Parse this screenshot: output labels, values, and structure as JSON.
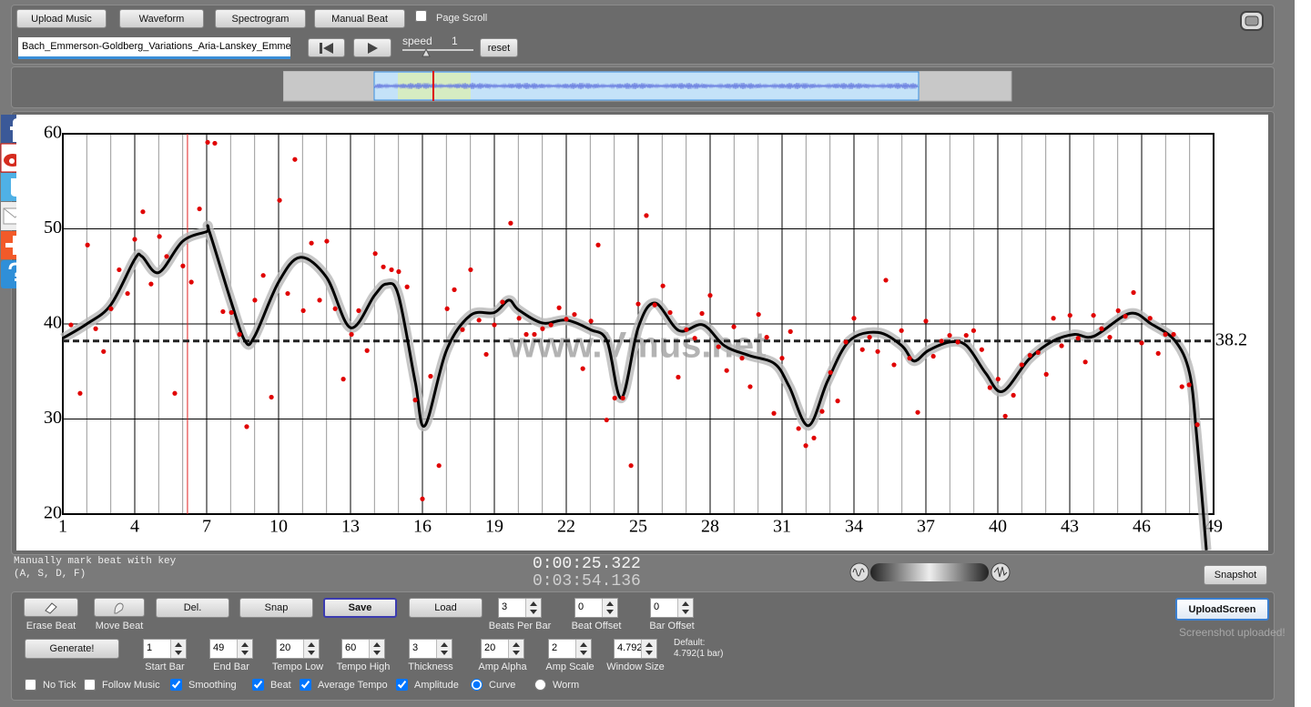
{
  "toolbar": {
    "buttons": [
      "Upload Music",
      "Waveform",
      "Spectrogram",
      "Manual Beat"
    ],
    "page_scroll": {
      "label": "Page Scroll",
      "checked": false
    },
    "file_name": "Bach_Emmerson-Goldberg_Variations_Aria-Lanskey_Emme",
    "speed_label": "speed",
    "speed_value": "1",
    "reset": "reset"
  },
  "chart_data": {
    "type": "scatter",
    "xlim": [
      1,
      49
    ],
    "ylim": [
      20,
      60
    ],
    "xticks": [
      1,
      4,
      7,
      10,
      13,
      16,
      19,
      22,
      25,
      28,
      31,
      34,
      37,
      40,
      43,
      46,
      49
    ],
    "yticks": [
      20,
      30,
      40,
      50,
      60
    ],
    "grid": true,
    "points": {
      "color": "#e00000",
      "x": [
        1.34,
        1.72,
        2.03,
        2.37,
        2.7,
        3.01,
        3.35,
        3.7,
        4.0,
        4.34,
        4.68,
        5.03,
        5.33,
        5.67,
        6.01,
        6.36,
        6.7,
        7.04,
        7.34,
        7.68,
        8.03,
        8.37,
        8.67,
        9.01,
        9.36,
        9.7,
        10.04,
        10.38,
        10.68,
        11.03,
        11.37,
        11.71,
        12.01,
        12.36,
        12.7,
        13.04,
        13.34,
        13.69,
        14.03,
        14.37,
        14.71,
        15.01,
        15.36,
        15.7,
        16.0,
        16.34,
        16.69,
        17.03,
        17.33,
        17.67,
        18.01,
        18.36,
        18.66,
        19.0,
        19.34,
        19.68,
        20.03,
        20.33,
        20.67,
        21.01,
        21.36,
        21.7,
        22.0,
        22.34,
        22.69,
        23.03,
        23.33,
        23.68,
        24.02,
        24.36,
        24.7,
        25.0,
        25.34,
        25.69,
        26.03,
        26.33,
        26.67,
        27.01,
        27.36,
        27.66,
        28.0,
        28.35,
        28.69,
        28.99,
        29.33,
        29.67,
        30.02,
        30.36,
        30.66,
        31.0,
        31.35,
        31.69,
        31.99,
        32.33,
        32.67,
        33.02,
        33.32,
        33.66,
        34.0,
        34.35,
        34.65,
        34.99,
        35.33,
        35.67,
        35.98,
        36.32,
        36.66,
        37.0,
        37.31,
        37.65,
        37.99,
        38.33,
        38.68,
        38.99,
        39.33,
        39.67,
        40.01,
        40.31,
        40.65,
        41.0,
        41.34,
        41.68,
        42.02,
        42.32,
        42.66,
        43.01,
        43.35,
        43.65,
        43.99,
        44.33,
        44.67,
        45.02,
        45.32,
        45.66,
        46.0,
        46.35,
        46.69,
        46.99,
        47.33,
        47.68,
        47.98,
        48.32
      ],
      "y": [
        39.9,
        32.7,
        48.3,
        39.5,
        37.1,
        41.6,
        45.7,
        43.2,
        48.9,
        51.8,
        44.2,
        49.2,
        47.1,
        32.7,
        46.1,
        44.4,
        52.1,
        59.1,
        59.0,
        41.3,
        41.2,
        38.9,
        29.2,
        42.5,
        45.1,
        32.3,
        53.0,
        43.2,
        57.3,
        41.4,
        48.5,
        42.5,
        48.7,
        41.6,
        34.2,
        38.9,
        41.4,
        37.2,
        47.4,
        46.0,
        45.7,
        45.5,
        43.9,
        32.0,
        21.6,
        34.5,
        25.1,
        41.6,
        43.6,
        39.4,
        45.7,
        40.4,
        36.8,
        39.9,
        42.3,
        50.6,
        40.6,
        38.9,
        38.9,
        39.5,
        39.9,
        41.7,
        40.5,
        41.0,
        35.3,
        40.3,
        48.3,
        29.9,
        32.2,
        32.2,
        25.1,
        42.1,
        51.4,
        42.0,
        44.0,
        41.2,
        34.4,
        39.4,
        38.5,
        41.1,
        43.0,
        37.6,
        35.1,
        39.7,
        36.4,
        33.4,
        41.0,
        38.6,
        30.6,
        36.4,
        39.2,
        29.0,
        27.2,
        28.0,
        30.8,
        34.9,
        31.9,
        38.1,
        40.6,
        37.3,
        38.6,
        37.1,
        44.6,
        35.7,
        39.3,
        36.4,
        30.7,
        40.3,
        36.6,
        38.2,
        38.8,
        38.1,
        38.8,
        39.3,
        37.3,
        33.3,
        34.2,
        30.3,
        32.5,
        35.7,
        36.7,
        37.0,
        34.7,
        40.6,
        37.7,
        40.9,
        38.5,
        36.0,
        40.9,
        39.5,
        38.6,
        41.4,
        40.8,
        43.3,
        38.0,
        40.6,
        36.9,
        38.9,
        38.9,
        33.4,
        33.6,
        29.4
      ]
    },
    "curve": {
      "color": "#000000",
      "band_color": "#b8b8b8",
      "x": [
        1,
        2,
        3,
        4,
        4.3,
        5,
        6,
        7,
        7.1,
        8,
        8.6,
        9,
        10,
        10.9,
        12,
        13,
        14,
        14.5,
        15,
        15.7,
        16.1,
        17,
        18,
        19,
        19.6,
        20,
        21,
        22,
        23,
        23.7,
        24.3,
        25,
        25.7,
        26.7,
        27.7,
        28.6,
        29.6,
        30.7,
        31.3,
        32.1,
        32.9,
        33.8,
        35,
        36,
        36.5,
        37.1,
        38,
        38.7,
        39.5,
        40.2,
        41.3,
        42.3,
        43.2,
        44,
        45.5,
        46.4,
        47.4,
        48,
        48.3,
        48.7
      ],
      "y": [
        38.5,
        40,
        42,
        46.8,
        47.1,
        45.4,
        48.7,
        49.7,
        49.8,
        42.5,
        38.2,
        38.7,
        44.4,
        47.0,
        44.9,
        39.6,
        43.0,
        44.2,
        43.0,
        33.9,
        29.3,
        37.2,
        40.9,
        41.2,
        42.5,
        41.5,
        40.1,
        40.4,
        39.4,
        38.2,
        32.2,
        39.6,
        42.2,
        39.3,
        39.9,
        37.7,
        36.7,
        35.8,
        33.4,
        29.3,
        34.0,
        38.2,
        39.1,
        37.7,
        36.1,
        37.2,
        38.1,
        37.7,
        34.8,
        32.9,
        36.3,
        38.2,
        38.9,
        38.7,
        41.1,
        40.0,
        38.2,
        34.8,
        28.1,
        16.2
      ]
    },
    "mean": 38.2,
    "playhead": 6.2,
    "watermark": "www.Vmus.net"
  },
  "status": {
    "hint": [
      "Manually mark beat with key",
      "(A, S, D, F)"
    ],
    "current_time": "0:00:25.322",
    "total_time": "0:03:54.136",
    "snapshot": "Snapshot"
  },
  "tools": {
    "icon_buttons": [
      "Erase Beat",
      "Move Beat"
    ],
    "buttons": [
      "Del.",
      "Snap",
      "Save",
      "Load"
    ],
    "fields_top": [
      {
        "value": "3",
        "label": "Beats Per Bar"
      },
      {
        "value": "0",
        "label": "Beat Offset"
      },
      {
        "value": "0",
        "label": "Bar Offset"
      }
    ],
    "generate": "Generate!",
    "fields_bottom": [
      {
        "value": "1",
        "label": "Start Bar"
      },
      {
        "value": "49",
        "label": "End Bar"
      },
      {
        "value": "20",
        "label": "Tempo Low"
      },
      {
        "value": "60",
        "label": "Tempo High"
      },
      {
        "value": "3",
        "label": "Thickness"
      },
      {
        "value": "20",
        "label": "Amp Alpha"
      },
      {
        "value": "2",
        "label": "Amp Scale"
      },
      {
        "value": "4.792",
        "label": "Window Size"
      }
    ],
    "default_note": [
      "Default:",
      "4.792(1 bar)"
    ],
    "options": [
      {
        "label": "No Tick",
        "kind": "checkbox",
        "checked": false
      },
      {
        "label": "Follow Music",
        "kind": "checkbox",
        "checked": false
      },
      {
        "label": "Smoothing",
        "kind": "checkbox",
        "checked": true
      },
      {
        "label": "Beat",
        "kind": "checkbox",
        "checked": true
      },
      {
        "label": "Average Tempo",
        "kind": "checkbox",
        "checked": true
      },
      {
        "label": "Amplitude",
        "kind": "checkbox",
        "checked": true
      },
      {
        "label": "Curve",
        "kind": "radio",
        "checked": true
      },
      {
        "label": "Worm",
        "kind": "radio",
        "checked": false
      }
    ],
    "upload": "UploadScreen",
    "upload_status": "Screenshot uploaded!"
  }
}
